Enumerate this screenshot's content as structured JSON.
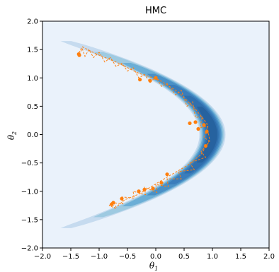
{
  "chart_data": {
    "type": "contour",
    "title": "HMC",
    "xlabel": "θ",
    "xlabel_sub": "1",
    "ylabel": "θ",
    "ylabel_sub": "2",
    "xlim": [
      -2.0,
      2.0
    ],
    "ylim": [
      -2.0,
      2.0
    ],
    "xticks": [
      -2.0,
      -1.5,
      -1.0,
      -0.5,
      0.0,
      0.5,
      1.0,
      1.5,
      2.0
    ],
    "yticks": [
      -2.0,
      -1.5,
      -1.0,
      -0.5,
      0.0,
      0.5,
      1.0,
      1.5,
      2.0
    ],
    "xtick_labels": [
      "−2.0",
      "−1.5",
      "−1.0",
      "−0.5",
      "0.0",
      "0.5",
      "1.0",
      "1.5",
      "2.0"
    ],
    "ytick_labels": [
      "−2.0",
      "−1.5",
      "−1.0",
      "−0.5",
      "0.0",
      "0.5",
      "1.0",
      "1.5",
      "2.0"
    ],
    "density": {
      "shape": "banana",
      "ridge_vertex": [
        1.0,
        0.0
      ],
      "ridge_curvature": 0.95,
      "levels": 7,
      "colormap": [
        "#eaf2fb",
        "#c6dbef",
        "#9ecae1",
        "#6baed6",
        "#4a90c6",
        "#3a7dbb",
        "#2f6fae",
        "#26629f"
      ]
    },
    "samples": {
      "color": "#ff7f0e",
      "points": [
        [
          -1.36,
          1.42
        ],
        [
          -1.35,
          1.4
        ],
        [
          -0.28,
          0.97
        ],
        [
          -0.1,
          0.95
        ],
        [
          0.0,
          1.0
        ],
        [
          0.6,
          0.2
        ],
        [
          0.7,
          0.22
        ],
        [
          0.75,
          0.1
        ],
        [
          0.85,
          0.17
        ],
        [
          0.9,
          0.05
        ],
        [
          0.88,
          -0.2
        ],
        [
          0.2,
          -0.7
        ],
        [
          0.1,
          -0.85
        ],
        [
          -0.05,
          -0.95
        ],
        [
          -0.2,
          -0.97
        ],
        [
          -0.3,
          -1.0
        ],
        [
          -0.6,
          -1.13
        ],
        [
          -0.75,
          -1.2
        ],
        [
          -0.78,
          -1.23
        ]
      ],
      "trajectory": [
        [
          -1.35,
          1.41
        ],
        [
          -1.3,
          1.52
        ],
        [
          -1.25,
          1.38
        ],
        [
          -1.18,
          1.5
        ],
        [
          -1.1,
          1.36
        ],
        [
          -1.0,
          1.45
        ],
        [
          -0.9,
          1.28
        ],
        [
          -0.8,
          1.36
        ],
        [
          -0.7,
          1.2
        ],
        [
          -0.6,
          1.26
        ],
        [
          -0.5,
          1.12
        ],
        [
          -0.4,
          1.18
        ],
        [
          -0.3,
          1.0
        ],
        [
          -0.2,
          1.06
        ],
        [
          -0.1,
          0.92
        ],
        [
          0.0,
          1.02
        ],
        [
          0.1,
          0.85
        ],
        [
          0.2,
          0.9
        ],
        [
          0.35,
          0.7
        ],
        [
          0.45,
          0.78
        ],
        [
          0.55,
          0.5
        ],
        [
          0.65,
          0.58
        ],
        [
          0.7,
          0.3
        ],
        [
          0.82,
          0.32
        ],
        [
          0.78,
          0.12
        ],
        [
          0.92,
          0.15
        ],
        [
          0.85,
          -0.05
        ],
        [
          0.95,
          -0.12
        ],
        [
          0.8,
          -0.3
        ],
        [
          0.88,
          -0.4
        ],
        [
          0.6,
          -0.5
        ],
        [
          0.68,
          -0.62
        ],
        [
          0.4,
          -0.65
        ],
        [
          0.45,
          -0.78
        ],
        [
          0.2,
          -0.78
        ],
        [
          0.22,
          -0.92
        ],
        [
          0.0,
          -0.88
        ],
        [
          0.02,
          -1.02
        ],
        [
          -0.2,
          -0.93
        ],
        [
          -0.18,
          -1.06
        ],
        [
          -0.4,
          -1.0
        ],
        [
          -0.38,
          -1.12
        ],
        [
          -0.6,
          -1.1
        ],
        [
          -0.58,
          -1.22
        ],
        [
          -0.78,
          -1.2
        ],
        [
          -0.72,
          -1.3
        ],
        [
          -0.82,
          -1.25
        ],
        [
          -0.76,
          -1.18
        ],
        [
          -0.7,
          -1.28
        ],
        [
          -0.55,
          -1.15
        ],
        [
          -0.3,
          -1.05
        ],
        [
          -0.05,
          -0.9
        ],
        [
          0.25,
          -0.72
        ],
        [
          0.55,
          -0.55
        ],
        [
          0.8,
          -0.35
        ],
        [
          0.95,
          -0.1
        ],
        [
          0.9,
          0.2
        ],
        [
          0.7,
          0.45
        ],
        [
          0.4,
          0.75
        ],
        [
          0.05,
          0.97
        ],
        [
          -0.3,
          1.08
        ],
        [
          -0.7,
          1.28
        ],
        [
          -1.05,
          1.42
        ],
        [
          -1.3,
          1.55
        ],
        [
          -1.38,
          1.4
        ]
      ]
    },
    "grid": false,
    "legend": "none"
  }
}
